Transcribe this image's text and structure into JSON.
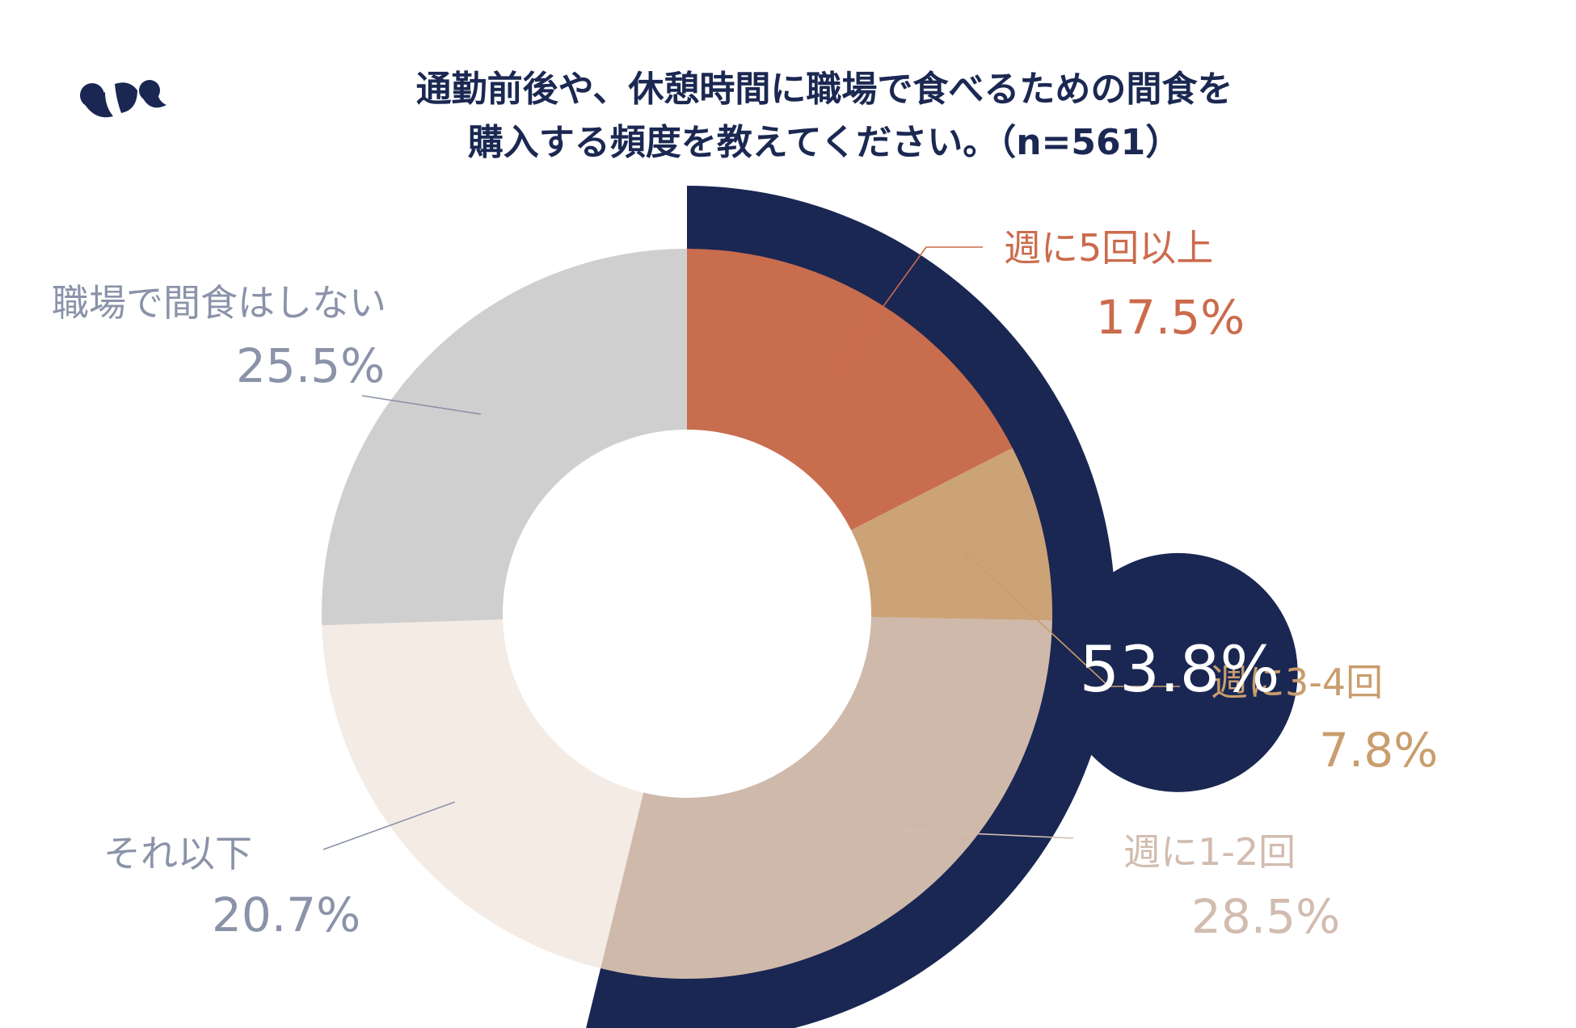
{
  "chart_data": {
    "type": "donut",
    "title": "通勤前後や、休憩時間に職場で食べるための間食を購入する頻度を教えてください。（n=561）",
    "title_lines": [
      "通勤前後や、休憩時間に職場で食べるための間食を",
      "購入する頻度を教えてください。（n=561）"
    ],
    "categories": [
      "週に5回以上",
      "週に3-4回",
      "週に1-2回",
      "それ以下",
      "職場で間食はしない"
    ],
    "values": [
      17.5,
      7.8,
      28.5,
      20.7,
      25.5
    ],
    "value_labels": [
      "17.5%",
      "7.8%",
      "28.5%",
      "20.7%",
      "25.5%"
    ],
    "colors": [
      "#c96d4f",
      "#cba377",
      "#cfb9ab",
      "#f4ebe5",
      "#d0cfcf"
    ],
    "label_colors": [
      "#cb6b4c",
      "#c99d6d",
      "#d2bcaf",
      "#8b93a9",
      "#8b93a9"
    ],
    "highlight": {
      "label": "53.8%",
      "value": 53.8,
      "covers": [
        "週に5回以上",
        "週に3-4回",
        "週に1-2回"
      ],
      "color": "#1a2753"
    }
  }
}
